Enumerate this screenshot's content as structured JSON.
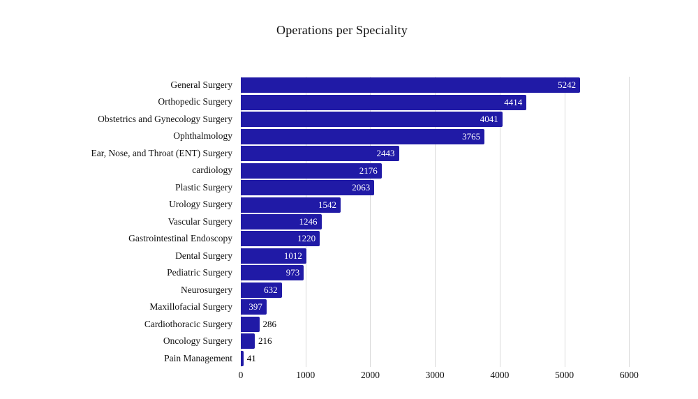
{
  "chart_data": {
    "type": "bar",
    "orientation": "horizontal",
    "title": "Operations per Speciality",
    "categories": [
      "General Surgery",
      "Orthopedic Surgery",
      "Obstetrics and Gynecology Surgery",
      "Ophthalmology",
      "Ear, Nose, and Throat (ENT) Surgery",
      "cardiology",
      "Plastic Surgery",
      "Urology Surgery",
      "Vascular Surgery",
      "Gastrointestinal Endoscopy",
      "Dental Surgery",
      "Pediatric Surgery",
      "Neurosurgery",
      "Maxillofacial Surgery",
      "Cardiothoracic Surgery",
      "Oncology Surgery",
      "Pain Management"
    ],
    "values": [
      5242,
      4414,
      4041,
      3765,
      2443,
      2176,
      2063,
      1542,
      1246,
      1220,
      1012,
      973,
      632,
      397,
      286,
      216,
      41
    ],
    "xlabel": "",
    "ylabel": "",
    "xlim": [
      0,
      6600
    ],
    "xticks": [
      0,
      1000,
      2000,
      3000,
      4000,
      5000,
      6000
    ],
    "grid": "vertical",
    "legend": "none",
    "bar_color": "#201AA6",
    "gridline_color": "#D9D9D9",
    "value_label_inside_color": "#FFFFFF",
    "value_label_outside_color": "#000000",
    "text_color": "#111111"
  }
}
